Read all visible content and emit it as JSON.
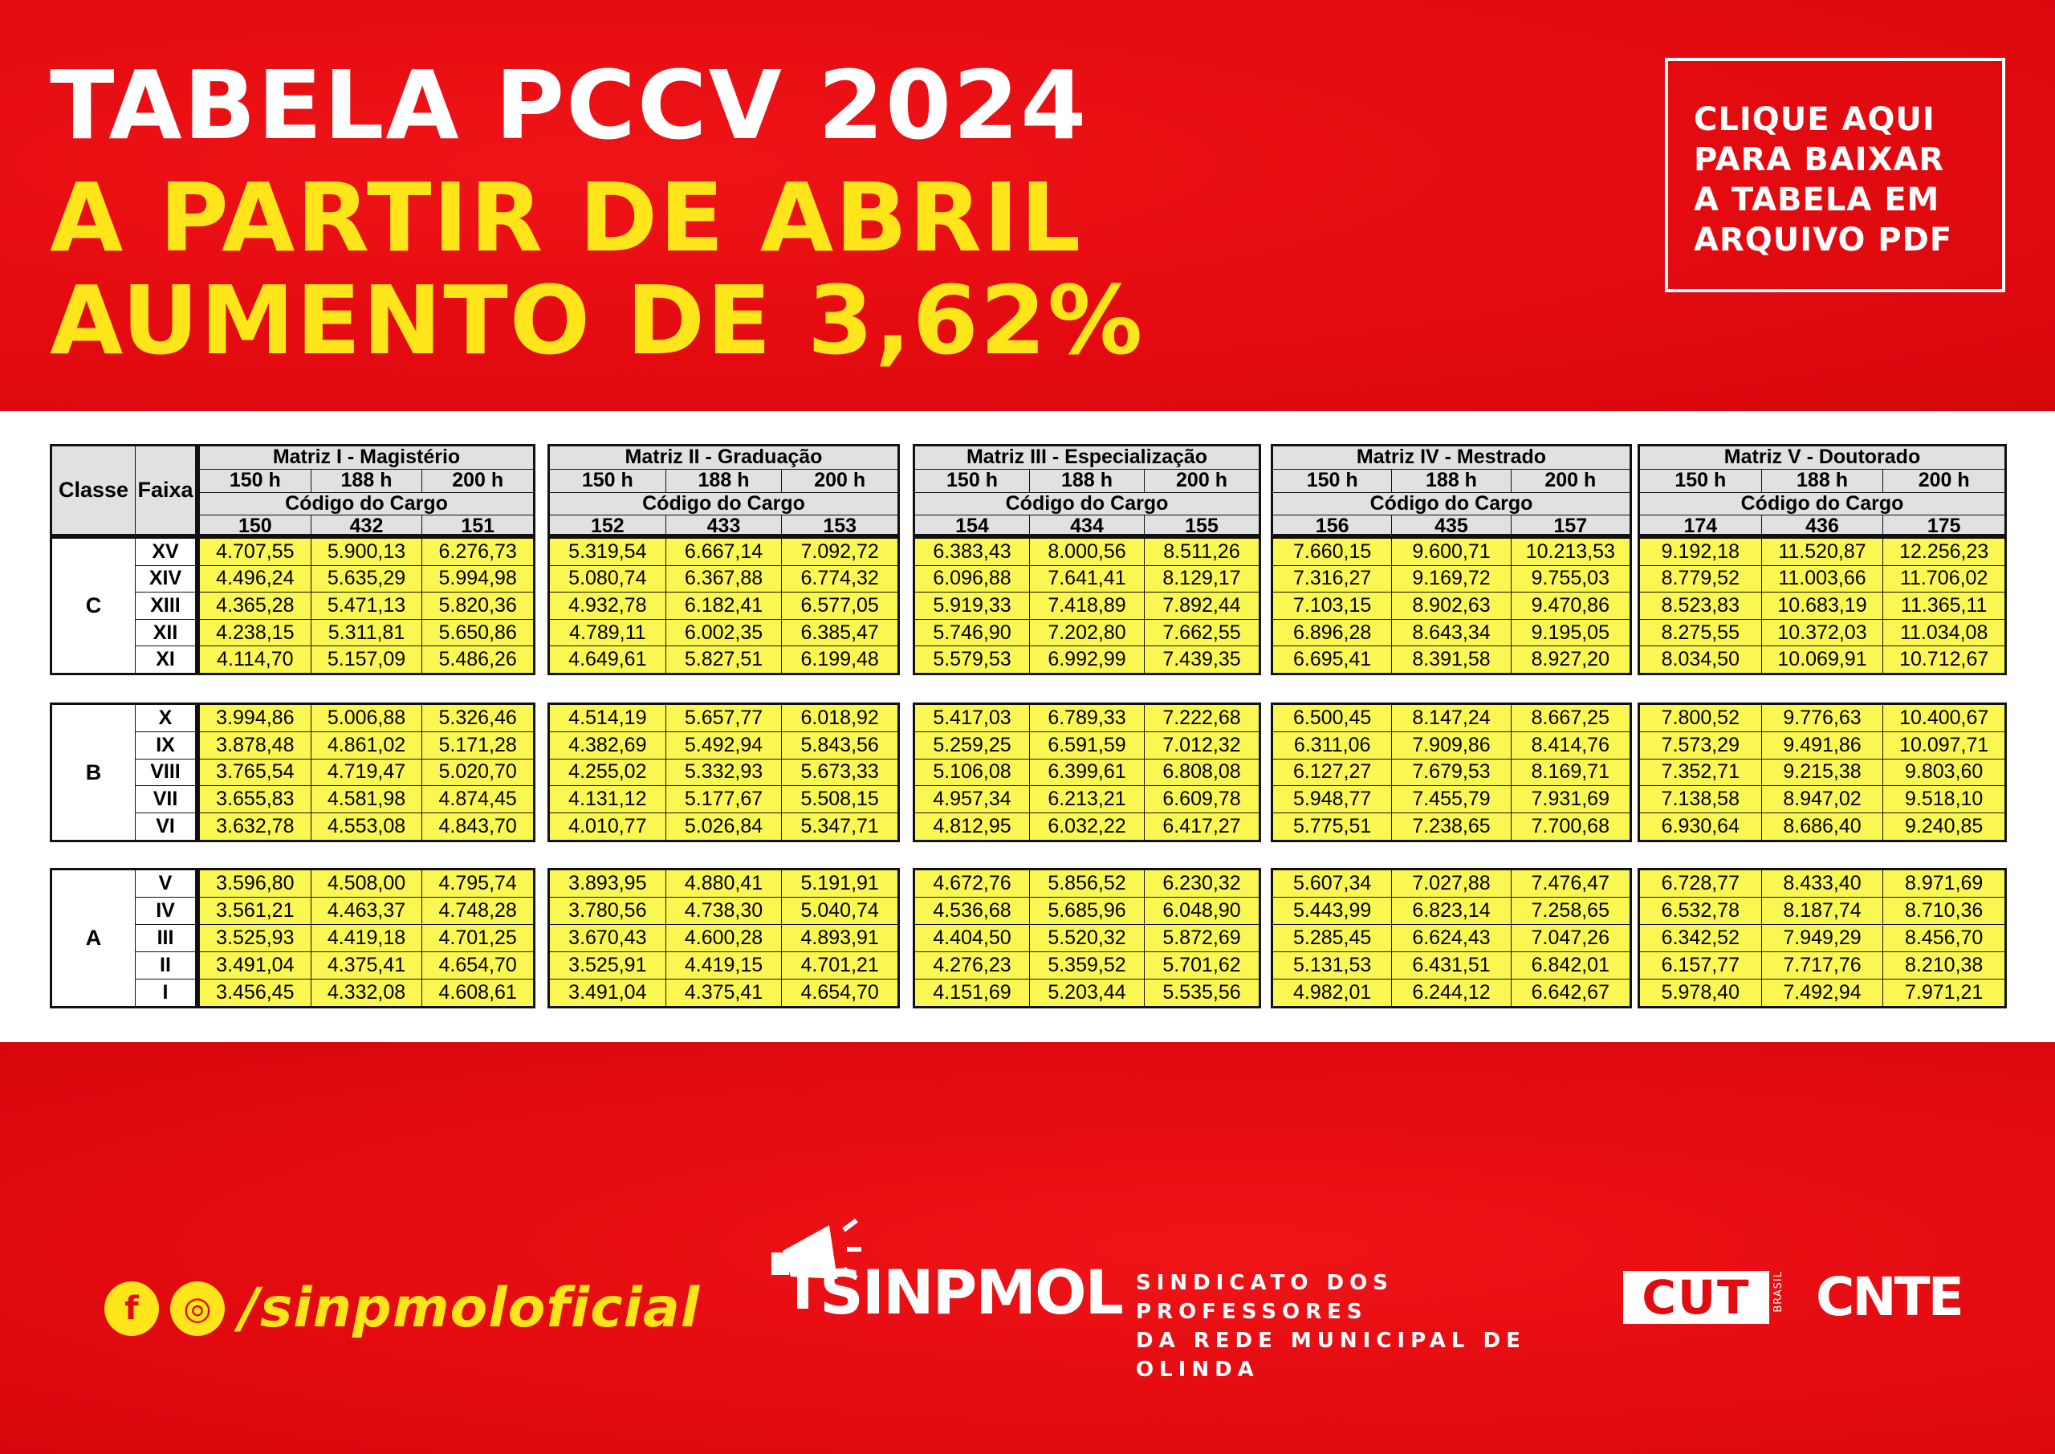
{
  "header": {
    "title_line1": "TABELA PCCV 2024",
    "title_line2": "A PARTIR DE ABRIL",
    "title_line3": "AUMENTO DE 3,62%",
    "download_button": "CLIQUE AQUI\nPARA BAIXAR\nA TABELA EM\nARQUIVO PDF"
  },
  "table": {
    "classe_label": "Classe",
    "faixa_label": "Faixa",
    "codigo_label": "Código do Cargo",
    "matrices": [
      {
        "name": "Matriz I - Magistério",
        "hours": [
          "150 h",
          "188 h",
          "200 h"
        ],
        "codes": [
          "150",
          "432",
          "151"
        ]
      },
      {
        "name": "Matriz II - Graduação",
        "hours": [
          "150 h",
          "188 h",
          "200 h"
        ],
        "codes": [
          "152",
          "433",
          "153"
        ]
      },
      {
        "name": "Matriz III - Especialização",
        "hours": [
          "150 h",
          "188 h",
          "200 h"
        ],
        "codes": [
          "154",
          "434",
          "155"
        ]
      },
      {
        "name": "Matriz IV - Mestrado",
        "hours": [
          "150 h",
          "188 h",
          "200 h"
        ],
        "codes": [
          "156",
          "435",
          "157"
        ]
      },
      {
        "name": "Matriz V - Doutorado",
        "hours": [
          "150 h",
          "188 h",
          "200 h"
        ],
        "codes": [
          "174",
          "436",
          "175"
        ]
      }
    ],
    "groups": [
      {
        "classe": "C",
        "faixas": [
          "XV",
          "XIV",
          "XIII",
          "XII",
          "XI"
        ],
        "values": [
          [
            [
              "4.707,55",
              "5.900,13",
              "6.276,73"
            ],
            [
              "5.319,54",
              "6.667,14",
              "7.092,72"
            ],
            [
              "6.383,43",
              "8.000,56",
              "8.511,26"
            ],
            [
              "7.660,15",
              "9.600,71",
              "10.213,53"
            ],
            [
              "9.192,18",
              "11.520,87",
              "12.256,23"
            ]
          ],
          [
            [
              "4.496,24",
              "5.635,29",
              "5.994,98"
            ],
            [
              "5.080,74",
              "6.367,88",
              "6.774,32"
            ],
            [
              "6.096,88",
              "7.641,41",
              "8.129,17"
            ],
            [
              "7.316,27",
              "9.169,72",
              "9.755,03"
            ],
            [
              "8.779,52",
              "11.003,66",
              "11.706,02"
            ]
          ],
          [
            [
              "4.365,28",
              "5.471,13",
              "5.820,36"
            ],
            [
              "4.932,78",
              "6.182,41",
              "6.577,05"
            ],
            [
              "5.919,33",
              "7.418,89",
              "7.892,44"
            ],
            [
              "7.103,15",
              "8.902,63",
              "9.470,86"
            ],
            [
              "8.523,83",
              "10.683,19",
              "11.365,11"
            ]
          ],
          [
            [
              "4.238,15",
              "5.311,81",
              "5.650,86"
            ],
            [
              "4.789,11",
              "6.002,35",
              "6.385,47"
            ],
            [
              "5.746,90",
              "7.202,80",
              "7.662,55"
            ],
            [
              "6.896,28",
              "8.643,34",
              "9.195,05"
            ],
            [
              "8.275,55",
              "10.372,03",
              "11.034,08"
            ]
          ],
          [
            [
              "4.114,70",
              "5.157,09",
              "5.486,26"
            ],
            [
              "4.649,61",
              "5.827,51",
              "6.199,48"
            ],
            [
              "5.579,53",
              "6.992,99",
              "7.439,35"
            ],
            [
              "6.695,41",
              "8.391,58",
              "8.927,20"
            ],
            [
              "8.034,50",
              "10.069,91",
              "10.712,67"
            ]
          ]
        ]
      },
      {
        "classe": "B",
        "faixas": [
          "X",
          "IX",
          "VIII",
          "VII",
          "VI"
        ],
        "values": [
          [
            [
              "3.994,86",
              "5.006,88",
              "5.326,46"
            ],
            [
              "4.514,19",
              "5.657,77",
              "6.018,92"
            ],
            [
              "5.417,03",
              "6.789,33",
              "7.222,68"
            ],
            [
              "6.500,45",
              "8.147,24",
              "8.667,25"
            ],
            [
              "7.800,52",
              "9.776,63",
              "10.400,67"
            ]
          ],
          [
            [
              "3.878,48",
              "4.861,02",
              "5.171,28"
            ],
            [
              "4.382,69",
              "5.492,94",
              "5.843,56"
            ],
            [
              "5.259,25",
              "6.591,59",
              "7.012,32"
            ],
            [
              "6.311,06",
              "7.909,86",
              "8.414,76"
            ],
            [
              "7.573,29",
              "9.491,86",
              "10.097,71"
            ]
          ],
          [
            [
              "3.765,54",
              "4.719,47",
              "5.020,70"
            ],
            [
              "4.255,02",
              "5.332,93",
              "5.673,33"
            ],
            [
              "5.106,08",
              "6.399,61",
              "6.808,08"
            ],
            [
              "6.127,27",
              "7.679,53",
              "8.169,71"
            ],
            [
              "7.352,71",
              "9.215,38",
              "9.803,60"
            ]
          ],
          [
            [
              "3.655,83",
              "4.581,98",
              "4.874,45"
            ],
            [
              "4.131,12",
              "5.177,67",
              "5.508,15"
            ],
            [
              "4.957,34",
              "6.213,21",
              "6.609,78"
            ],
            [
              "5.948,77",
              "7.455,79",
              "7.931,69"
            ],
            [
              "7.138,58",
              "8.947,02",
              "9.518,10"
            ]
          ],
          [
            [
              "3.632,78",
              "4.553,08",
              "4.843,70"
            ],
            [
              "4.010,77",
              "5.026,84",
              "5.347,71"
            ],
            [
              "4.812,95",
              "6.032,22",
              "6.417,27"
            ],
            [
              "5.775,51",
              "7.238,65",
              "7.700,68"
            ],
            [
              "6.930,64",
              "8.686,40",
              "9.240,85"
            ]
          ]
        ]
      },
      {
        "classe": "A",
        "faixas": [
          "V",
          "IV",
          "III",
          "II",
          "I"
        ],
        "values": [
          [
            [
              "3.596,80",
              "4.508,00",
              "4.795,74"
            ],
            [
              "3.893,95",
              "4.880,41",
              "5.191,91"
            ],
            [
              "4.672,76",
              "5.856,52",
              "6.230,32"
            ],
            [
              "5.607,34",
              "7.027,88",
              "7.476,47"
            ],
            [
              "6.728,77",
              "8.433,40",
              "8.971,69"
            ]
          ],
          [
            [
              "3.561,21",
              "4.463,37",
              "4.748,28"
            ],
            [
              "3.780,56",
              "4.738,30",
              "5.040,74"
            ],
            [
              "4.536,68",
              "5.685,96",
              "6.048,90"
            ],
            [
              "5.443,99",
              "6.823,14",
              "7.258,65"
            ],
            [
              "6.532,78",
              "8.187,74",
              "8.710,36"
            ]
          ],
          [
            [
              "3.525,93",
              "4.419,18",
              "4.701,25"
            ],
            [
              "3.670,43",
              "4.600,28",
              "4.893,91"
            ],
            [
              "4.404,50",
              "5.520,32",
              "5.872,69"
            ],
            [
              "5.285,45",
              "6.624,43",
              "7.047,26"
            ],
            [
              "6.342,52",
              "7.949,29",
              "8.456,70"
            ]
          ],
          [
            [
              "3.491,04",
              "4.375,41",
              "4.654,70"
            ],
            [
              "3.525,91",
              "4.419,15",
              "4.701,21"
            ],
            [
              "4.276,23",
              "5.359,52",
              "5.701,62"
            ],
            [
              "5.131,53",
              "6.431,51",
              "6.842,01"
            ],
            [
              "6.157,77",
              "7.717,76",
              "8.210,38"
            ]
          ],
          [
            [
              "3.456,45",
              "4.332,08",
              "4.608,61"
            ],
            [
              "3.491,04",
              "4.375,41",
              "4.654,70"
            ],
            [
              "4.151,69",
              "5.203,44",
              "5.535,56"
            ],
            [
              "4.982,01",
              "6.244,12",
              "6.642,67"
            ],
            [
              "5.978,40",
              "7.492,94",
              "7.971,21"
            ]
          ]
        ]
      }
    ]
  },
  "footer": {
    "facebook_icon": "f",
    "instagram_icon": "◎",
    "handle": "/sinpmoloficial",
    "logo_name": "SINPMOL",
    "logo_subtitle": "SINDICATO DOS PROFESSORES\nDA REDE MUNICIPAL DE OLINDA",
    "cut_logo": "CUT",
    "cut_sub": "BRASIL",
    "cnte_logo": "CNTE"
  }
}
